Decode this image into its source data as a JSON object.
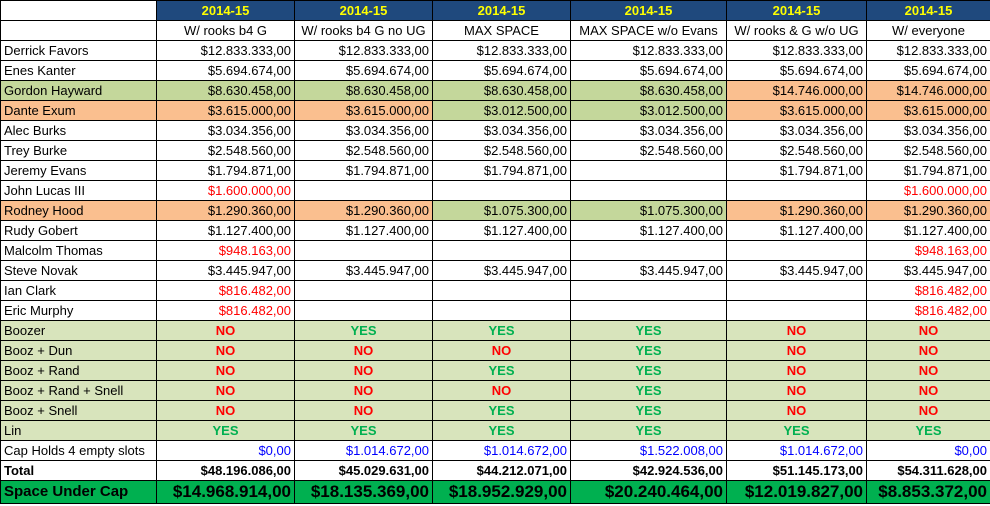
{
  "season_label": "2014-15",
  "columns": [
    "W/ rooks b4 G",
    "W/ rooks b4 G no UG",
    "MAX SPACE",
    "MAX SPACE w/o Evans",
    "W/ rooks & G w/o UG",
    "W/ everyone"
  ],
  "colors": {
    "header_bg": "#1f497d",
    "header_text": "#ffff00",
    "highlight_green": "#c4d79b",
    "highlight_orange": "#fabf8f",
    "option_row_bg": "#d8e4bc",
    "space_row_bg": "#00b050",
    "red_text": "#ff0000",
    "blue_text": "#0000ff",
    "yes_text": "#00b050"
  },
  "players": [
    {
      "name": "Derrick Favors",
      "cells": [
        {
          "v": "$12.833.333,00"
        },
        {
          "v": "$12.833.333,00"
        },
        {
          "v": "$12.833.333,00"
        },
        {
          "v": "$12.833.333,00"
        },
        {
          "v": "$12.833.333,00"
        },
        {
          "v": "$12.833.333,00"
        }
      ]
    },
    {
      "name": "Enes Kanter",
      "cells": [
        {
          "v": "$5.694.674,00"
        },
        {
          "v": "$5.694.674,00"
        },
        {
          "v": "$5.694.674,00"
        },
        {
          "v": "$5.694.674,00"
        },
        {
          "v": "$5.694.674,00"
        },
        {
          "v": "$5.694.674,00"
        }
      ]
    },
    {
      "name": "Gordon Hayward",
      "row_bg": "g",
      "cells": [
        {
          "v": "$8.630.458,00",
          "bg": "g"
        },
        {
          "v": "$8.630.458,00",
          "bg": "g"
        },
        {
          "v": "$8.630.458,00",
          "bg": "g"
        },
        {
          "v": "$8.630.458,00",
          "bg": "g"
        },
        {
          "v": "$14.746.000,00",
          "bg": "o"
        },
        {
          "v": "$14.746.000,00",
          "bg": "o"
        }
      ]
    },
    {
      "name": "Dante Exum",
      "row_bg": "o",
      "cells": [
        {
          "v": "$3.615.000,00",
          "bg": "o"
        },
        {
          "v": "$3.615.000,00",
          "bg": "o"
        },
        {
          "v": "$3.012.500,00",
          "bg": "g"
        },
        {
          "v": "$3.012.500,00",
          "bg": "g"
        },
        {
          "v": "$3.615.000,00",
          "bg": "o"
        },
        {
          "v": "$3.615.000,00",
          "bg": "o"
        }
      ]
    },
    {
      "name": "Alec Burks",
      "cells": [
        {
          "v": "$3.034.356,00"
        },
        {
          "v": "$3.034.356,00"
        },
        {
          "v": "$3.034.356,00"
        },
        {
          "v": "$3.034.356,00"
        },
        {
          "v": "$3.034.356,00"
        },
        {
          "v": "$3.034.356,00"
        }
      ]
    },
    {
      "name": "Trey Burke",
      "cells": [
        {
          "v": "$2.548.560,00"
        },
        {
          "v": "$2.548.560,00"
        },
        {
          "v": "$2.548.560,00"
        },
        {
          "v": "$2.548.560,00"
        },
        {
          "v": "$2.548.560,00"
        },
        {
          "v": "$2.548.560,00"
        }
      ]
    },
    {
      "name": "Jeremy Evans",
      "cells": [
        {
          "v": "$1.794.871,00"
        },
        {
          "v": "$1.794.871,00"
        },
        {
          "v": "$1.794.871,00"
        },
        {
          "v": ""
        },
        {
          "v": "$1.794.871,00"
        },
        {
          "v": "$1.794.871,00"
        }
      ]
    },
    {
      "name": "John Lucas III",
      "cells": [
        {
          "v": "$1.600.000,00",
          "c": "red"
        },
        {
          "v": ""
        },
        {
          "v": ""
        },
        {
          "v": ""
        },
        {
          "v": ""
        },
        {
          "v": "$1.600.000,00",
          "c": "red"
        }
      ]
    },
    {
      "name": "Rodney Hood",
      "row_bg": "o",
      "cells": [
        {
          "v": "$1.290.360,00",
          "bg": "o"
        },
        {
          "v": "$1.290.360,00",
          "bg": "o"
        },
        {
          "v": "$1.075.300,00",
          "bg": "g"
        },
        {
          "v": "$1.075.300,00",
          "bg": "g"
        },
        {
          "v": "$1.290.360,00",
          "bg": "o"
        },
        {
          "v": "$1.290.360,00",
          "bg": "o"
        }
      ]
    },
    {
      "name": "Rudy Gobert",
      "cells": [
        {
          "v": "$1.127.400,00"
        },
        {
          "v": "$1.127.400,00"
        },
        {
          "v": "$1.127.400,00"
        },
        {
          "v": "$1.127.400,00"
        },
        {
          "v": "$1.127.400,00"
        },
        {
          "v": "$1.127.400,00"
        }
      ]
    },
    {
      "name": "Malcolm Thomas",
      "cells": [
        {
          "v": "$948.163,00",
          "c": "red"
        },
        {
          "v": ""
        },
        {
          "v": ""
        },
        {
          "v": ""
        },
        {
          "v": ""
        },
        {
          "v": "$948.163,00",
          "c": "red"
        }
      ]
    },
    {
      "name": "Steve Novak",
      "cells": [
        {
          "v": "$3.445.947,00"
        },
        {
          "v": "$3.445.947,00"
        },
        {
          "v": "$3.445.947,00"
        },
        {
          "v": "$3.445.947,00"
        },
        {
          "v": "$3.445.947,00"
        },
        {
          "v": "$3.445.947,00"
        }
      ]
    },
    {
      "name": "Ian Clark",
      "cells": [
        {
          "v": "$816.482,00",
          "c": "red"
        },
        {
          "v": ""
        },
        {
          "v": ""
        },
        {
          "v": ""
        },
        {
          "v": ""
        },
        {
          "v": "$816.482,00",
          "c": "red"
        }
      ]
    },
    {
      "name": "Eric Murphy",
      "cells": [
        {
          "v": "$816.482,00",
          "c": "red"
        },
        {
          "v": ""
        },
        {
          "v": ""
        },
        {
          "v": ""
        },
        {
          "v": ""
        },
        {
          "v": "$816.482,00",
          "c": "red"
        }
      ]
    }
  ],
  "options": [
    {
      "name": "Boozer",
      "values": [
        "NO",
        "YES",
        "YES",
        "YES",
        "NO",
        "NO"
      ]
    },
    {
      "name": "Booz + Dun",
      "values": [
        "NO",
        "NO",
        "NO",
        "YES",
        "NO",
        "NO"
      ]
    },
    {
      "name": "Booz + Rand",
      "values": [
        "NO",
        "NO",
        "YES",
        "YES",
        "NO",
        "NO"
      ]
    },
    {
      "name": "Booz + Rand + Snell",
      "values": [
        "NO",
        "NO",
        "NO",
        "YES",
        "NO",
        "NO"
      ]
    },
    {
      "name": "Booz + Snell",
      "values": [
        "NO",
        "NO",
        "YES",
        "YES",
        "NO",
        "NO"
      ]
    },
    {
      "name": "Lin",
      "values": [
        "YES",
        "YES",
        "YES",
        "YES",
        "YES",
        "YES"
      ]
    }
  ],
  "cap_holds": {
    "name": "Cap Holds 4 empty slots",
    "values": [
      "$0,00",
      "$1.014.672,00",
      "$1.014.672,00",
      "$1.522.008,00",
      "$1.014.672,00",
      "$0,00"
    ]
  },
  "total": {
    "name": "Total",
    "values": [
      "$48.196.086,00",
      "$45.029.631,00",
      "$44.212.071,00",
      "$42.924.536,00",
      "$51.145.173,00",
      "$54.311.628,00"
    ]
  },
  "space_under_cap": {
    "name": "Space Under Cap",
    "values": [
      "$14.968.914,00",
      "$18.135.369,00",
      "$18.952.929,00",
      "$20.240.464,00",
      "$12.019.827,00",
      "$8.853.372,00"
    ]
  }
}
